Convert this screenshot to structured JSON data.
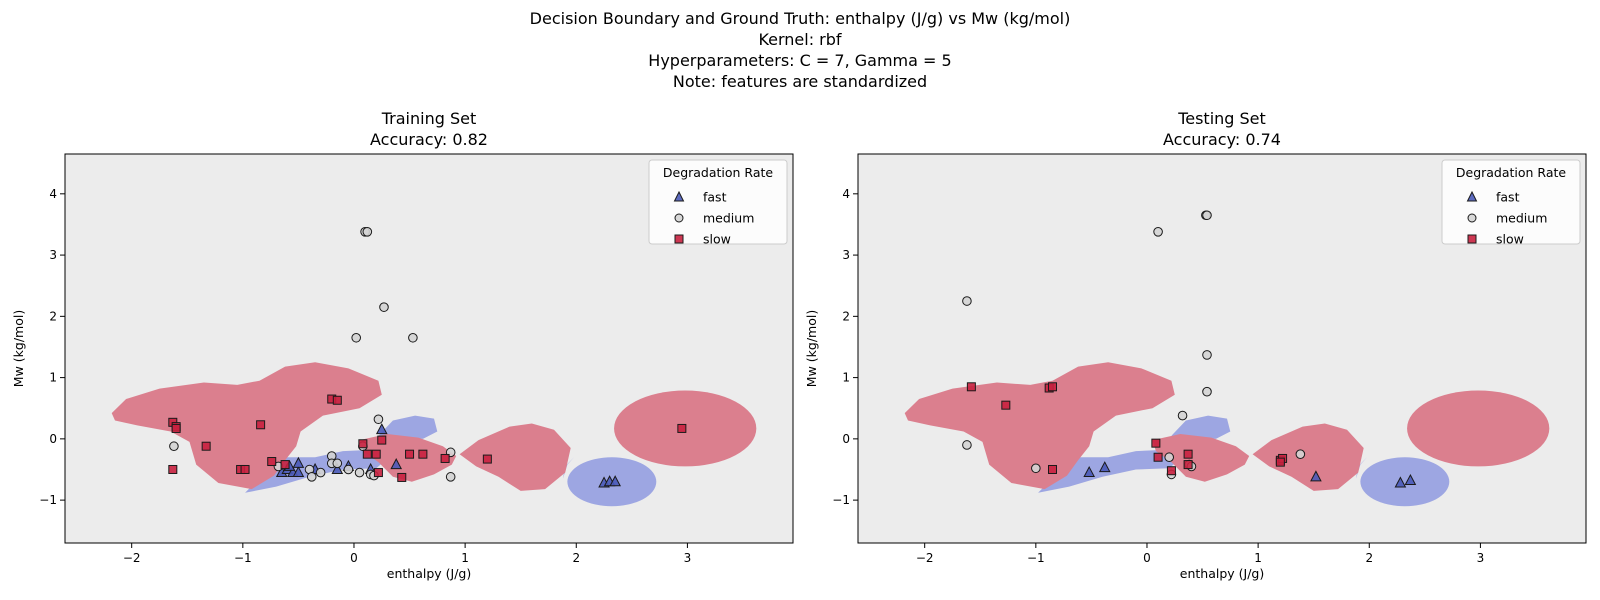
{
  "figure": {
    "title_lines": [
      "Decision Boundary and Ground Truth: enthalpy (J/g) vs Mw (kg/mol)",
      "Kernel: rbf",
      "Hyperparameters: C = 7, Gamma = 5",
      "Note: features are standardized"
    ]
  },
  "colors": {
    "fast": "#4a5ab8",
    "medium": "#d4d4d4",
    "slow": "#c8213f",
    "region_fast": "#9da6e2",
    "region_slow": "#db7f8e",
    "background": "#ececec"
  },
  "chart_data": [
    {
      "type": "scatter",
      "title_lines": [
        "Training Set",
        "Accuracy: 0.82"
      ],
      "xlabel": "enthalpy (J/g)",
      "ylabel": "Mw (kg/mol)",
      "xlim": [
        -2.6,
        3.95
      ],
      "ylim": [
        -1.7,
        4.65
      ],
      "xticks": [
        -2,
        -1,
        0,
        1,
        2,
        3
      ],
      "yticks": [
        -1,
        0,
        1,
        2,
        3,
        4
      ],
      "legend": {
        "title": "Degradation Rate",
        "placement": "top-right",
        "entries": [
          "fast",
          "medium",
          "slow"
        ]
      },
      "series": [
        {
          "name": "fast",
          "marker": "triangle",
          "points": [
            [
              -0.65,
              -0.55
            ],
            [
              -0.6,
              -0.5
            ],
            [
              -0.55,
              -0.55
            ],
            [
              -0.5,
              -0.55
            ],
            [
              -0.58,
              -0.45
            ],
            [
              -0.5,
              -0.4
            ],
            [
              -0.35,
              -0.5
            ],
            [
              -0.15,
              -0.5
            ],
            [
              -0.05,
              -0.45
            ],
            [
              0.15,
              -0.5
            ],
            [
              0.25,
              0.15
            ],
            [
              0.38,
              -0.42
            ],
            [
              2.25,
              -0.72
            ],
            [
              2.3,
              -0.7
            ],
            [
              2.35,
              -0.7
            ]
          ]
        },
        {
          "name": "medium",
          "marker": "circle",
          "points": [
            [
              -1.62,
              -0.12
            ],
            [
              -0.68,
              -0.45
            ],
            [
              -0.4,
              -0.5
            ],
            [
              -0.3,
              -0.55
            ],
            [
              -0.2,
              -0.28
            ],
            [
              -0.2,
              -0.4
            ],
            [
              -0.15,
              -0.4
            ],
            [
              -0.05,
              -0.5
            ],
            [
              0.05,
              -0.55
            ],
            [
              0.08,
              -0.12
            ],
            [
              0.15,
              -0.58
            ],
            [
              0.18,
              -0.6
            ],
            [
              0.02,
              1.65
            ],
            [
              0.1,
              3.38
            ],
            [
              0.12,
              3.38
            ],
            [
              0.27,
              2.15
            ],
            [
              0.53,
              1.65
            ],
            [
              0.22,
              0.32
            ],
            [
              0.87,
              -0.22
            ],
            [
              0.87,
              -0.62
            ],
            [
              -0.38,
              -0.62
            ]
          ]
        },
        {
          "name": "slow",
          "marker": "square",
          "points": [
            [
              -1.63,
              0.27
            ],
            [
              -1.6,
              0.2
            ],
            [
              -1.6,
              0.17
            ],
            [
              -1.63,
              -0.5
            ],
            [
              -1.33,
              -0.12
            ],
            [
              -1.02,
              -0.5
            ],
            [
              -0.98,
              -0.5
            ],
            [
              -0.84,
              0.23
            ],
            [
              -0.74,
              -0.37
            ],
            [
              -0.62,
              -0.42
            ],
            [
              -0.2,
              0.65
            ],
            [
              -0.15,
              0.63
            ],
            [
              0.08,
              -0.08
            ],
            [
              0.12,
              -0.25
            ],
            [
              0.2,
              -0.25
            ],
            [
              0.22,
              -0.55
            ],
            [
              0.25,
              -0.02
            ],
            [
              0.43,
              -0.63
            ],
            [
              0.5,
              -0.25
            ],
            [
              0.62,
              -0.25
            ],
            [
              0.82,
              -0.32
            ],
            [
              1.2,
              -0.33
            ],
            [
              2.95,
              0.17
            ]
          ]
        }
      ]
    },
    {
      "type": "scatter",
      "title_lines": [
        "Testing Set",
        "Accuracy: 0.74"
      ],
      "xlabel": "enthalpy (J/g)",
      "ylabel": "Mw (kg/mol)",
      "xlim": [
        -2.6,
        3.95
      ],
      "ylim": [
        -1.7,
        4.65
      ],
      "xticks": [
        -2,
        -1,
        0,
        1,
        2,
        3
      ],
      "yticks": [
        -1,
        0,
        1,
        2,
        3,
        4
      ],
      "legend": {
        "title": "Degradation Rate",
        "placement": "top-right",
        "entries": [
          "fast",
          "medium",
          "slow"
        ]
      },
      "series": [
        {
          "name": "fast",
          "marker": "triangle",
          "points": [
            [
              -0.52,
              -0.55
            ],
            [
              -0.38,
              -0.47
            ],
            [
              1.52,
              -0.62
            ],
            [
              2.28,
              -0.72
            ],
            [
              2.37,
              -0.68
            ]
          ]
        },
        {
          "name": "medium",
          "marker": "circle",
          "points": [
            [
              -1.62,
              2.25
            ],
            [
              -1.62,
              -0.1
            ],
            [
              -1.0,
              -0.48
            ],
            [
              0.1,
              3.38
            ],
            [
              0.2,
              -0.3
            ],
            [
              0.22,
              -0.58
            ],
            [
              0.32,
              0.38
            ],
            [
              0.38,
              -0.42
            ],
            [
              0.4,
              -0.45
            ],
            [
              0.53,
              3.65
            ],
            [
              0.54,
              3.65
            ],
            [
              0.54,
              1.37
            ],
            [
              0.54,
              0.77
            ],
            [
              1.38,
              -0.25
            ]
          ]
        },
        {
          "name": "slow",
          "marker": "square",
          "points": [
            [
              -1.58,
              0.85
            ],
            [
              -1.27,
              0.55
            ],
            [
              -0.88,
              0.83
            ],
            [
              -0.85,
              0.85
            ],
            [
              -0.85,
              -0.5
            ],
            [
              0.08,
              -0.07
            ],
            [
              0.1,
              -0.3
            ],
            [
              0.22,
              -0.52
            ],
            [
              0.37,
              -0.25
            ],
            [
              0.37,
              -0.42
            ],
            [
              1.2,
              -0.35
            ],
            [
              1.22,
              -0.32
            ],
            [
              1.2,
              -0.38
            ]
          ]
        }
      ]
    }
  ]
}
